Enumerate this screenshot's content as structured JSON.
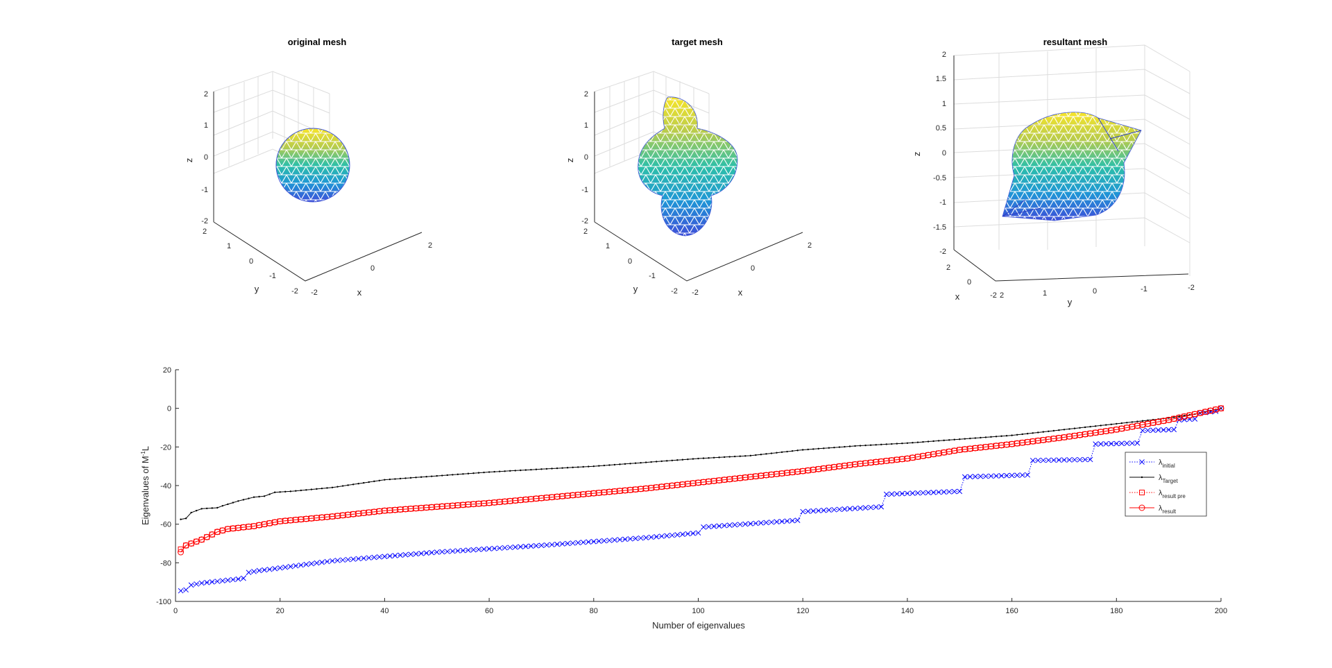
{
  "meshes": [
    {
      "title": "original mesh",
      "xlabel": "x",
      "ylabel": "y",
      "zlabel": "z",
      "x_ticks": [
        "2",
        "0",
        "-2"
      ],
      "y_ticks": [
        "2",
        "1",
        "0",
        "-1",
        "-2"
      ],
      "z_ticks": [
        "2",
        "1",
        "0",
        "-1",
        "-2"
      ]
    },
    {
      "title": "target mesh",
      "xlabel": "x",
      "ylabel": "y",
      "zlabel": "z",
      "x_ticks": [
        "2",
        "0",
        "-2"
      ],
      "y_ticks": [
        "2",
        "1",
        "0",
        "-1",
        "-2"
      ],
      "z_ticks": [
        "2",
        "1",
        "0",
        "-1",
        "-2"
      ]
    },
    {
      "title": "resultant mesh",
      "xlabel": "x",
      "ylabel": "y",
      "zlabel": "z",
      "x_ticks": [
        "2",
        "0",
        "-2"
      ],
      "y_ticks": [
        "2",
        "1",
        "0",
        "-1",
        "-2"
      ],
      "z_ticks": [
        "2",
        "1.5",
        "1",
        "0.5",
        "0",
        "-0.5",
        "-1",
        "-1.5",
        "-2"
      ]
    }
  ],
  "chart_data": {
    "type": "line",
    "xlabel": "Number of eigenvalues",
    "ylabel_main": "Eigenvalues of M",
    "ylabel_sup": "-1",
    "ylabel_tail": "L",
    "xlim": [
      0,
      200
    ],
    "ylim": [
      -100,
      20
    ],
    "x_ticks": [
      0,
      20,
      40,
      60,
      80,
      100,
      120,
      140,
      160,
      180,
      200
    ],
    "y_ticks": [
      -100,
      -80,
      -60,
      -40,
      -20,
      0,
      20
    ],
    "grid": false,
    "legend_position": "right",
    "series": [
      {
        "name_base": "λ",
        "name_sub": "initial",
        "color": "#0000ff",
        "line": "dotted",
        "marker": "x",
        "points": [
          [
            1,
            -94.5
          ],
          [
            2,
            -94
          ],
          [
            3,
            -91.5
          ],
          [
            4,
            -91
          ],
          [
            5,
            -90.5
          ],
          [
            6,
            -90.2
          ],
          [
            7,
            -89.9
          ],
          [
            8,
            -89.6
          ],
          [
            9,
            -89.3
          ],
          [
            10,
            -89
          ],
          [
            11,
            -88.7
          ],
          [
            12,
            -88.4
          ],
          [
            13,
            -88
          ],
          [
            14,
            -85
          ],
          [
            15,
            -84.5
          ],
          [
            16,
            -84
          ],
          [
            17,
            -83.7
          ],
          [
            18,
            -83.4
          ],
          [
            30,
            -79
          ],
          [
            50,
            -74.5
          ],
          [
            70,
            -71
          ],
          [
            90,
            -67
          ],
          [
            100,
            -64.5
          ],
          [
            101,
            -61.5
          ],
          [
            119,
            -58
          ],
          [
            120,
            -53.5
          ],
          [
            135,
            -51
          ],
          [
            136,
            -44.5
          ],
          [
            150,
            -43
          ],
          [
            151,
            -35.5
          ],
          [
            163,
            -34.5
          ],
          [
            164,
            -27
          ],
          [
            175,
            -26.5
          ],
          [
            176,
            -18.5
          ],
          [
            184,
            -18
          ],
          [
            185,
            -11.5
          ],
          [
            191,
            -11
          ],
          [
            192,
            -6
          ],
          [
            195,
            -5.5
          ],
          [
            196,
            -2.5
          ],
          [
            199,
            -1.5
          ],
          [
            200,
            0
          ]
        ]
      },
      {
        "name_base": "λ",
        "name_sub": "Target",
        "color": "#000000",
        "line": "solid",
        "marker": "dot",
        "points": [
          [
            1,
            -57.5
          ],
          [
            2,
            -57
          ],
          [
            3,
            -54
          ],
          [
            4,
            -53
          ],
          [
            5,
            -52
          ],
          [
            8,
            -51.5
          ],
          [
            9,
            -50.5
          ],
          [
            12,
            -48
          ],
          [
            15,
            -46
          ],
          [
            17,
            -45.5
          ],
          [
            19,
            -43.5
          ],
          [
            22,
            -43
          ],
          [
            30,
            -41
          ],
          [
            40,
            -37
          ],
          [
            50,
            -35
          ],
          [
            60,
            -33
          ],
          [
            80,
            -30
          ],
          [
            100,
            -26
          ],
          [
            110,
            -24.5
          ],
          [
            120,
            -21.5
          ],
          [
            130,
            -19.5
          ],
          [
            140,
            -18
          ],
          [
            150,
            -16
          ],
          [
            160,
            -14
          ],
          [
            170,
            -11
          ],
          [
            180,
            -8
          ],
          [
            190,
            -5
          ],
          [
            195,
            -3
          ],
          [
            200,
            0
          ]
        ]
      },
      {
        "name_base": "λ",
        "name_sub": "result pre",
        "color": "#ff0000",
        "line": "dotted",
        "marker": "square",
        "points": [
          [
            1,
            -73
          ],
          [
            2,
            -71
          ],
          [
            3,
            -70
          ],
          [
            5,
            -68
          ],
          [
            8,
            -64
          ],
          [
            10,
            -62.5
          ],
          [
            15,
            -61
          ],
          [
            20,
            -58.5
          ],
          [
            30,
            -56
          ],
          [
            40,
            -53
          ],
          [
            50,
            -51
          ],
          [
            60,
            -49
          ],
          [
            70,
            -46.5
          ],
          [
            80,
            -44
          ],
          [
            90,
            -41.5
          ],
          [
            100,
            -38.5
          ],
          [
            110,
            -35.5
          ],
          [
            120,
            -32.5
          ],
          [
            130,
            -29
          ],
          [
            140,
            -26
          ],
          [
            150,
            -21.5
          ],
          [
            160,
            -18.5
          ],
          [
            170,
            -15
          ],
          [
            180,
            -11
          ],
          [
            190,
            -6
          ],
          [
            195,
            -3
          ],
          [
            200,
            0
          ]
        ]
      },
      {
        "name_base": "λ",
        "name_sub": "result",
        "color": "#ff0000",
        "line": "solid",
        "marker": "circle",
        "points": [
          [
            1,
            -74.5
          ],
          [
            2,
            -71
          ],
          [
            3,
            -70
          ],
          [
            5,
            -68
          ],
          [
            8,
            -64
          ],
          [
            10,
            -62.5
          ],
          [
            15,
            -61
          ],
          [
            20,
            -58.5
          ],
          [
            30,
            -56
          ],
          [
            40,
            -53
          ],
          [
            50,
            -51
          ],
          [
            60,
            -49
          ],
          [
            70,
            -46.5
          ],
          [
            80,
            -44
          ],
          [
            90,
            -41.5
          ],
          [
            100,
            -38.5
          ],
          [
            110,
            -35.5
          ],
          [
            120,
            -32.5
          ],
          [
            130,
            -29
          ],
          [
            140,
            -26
          ],
          [
            150,
            -21.5
          ],
          [
            160,
            -18.5
          ],
          [
            170,
            -15
          ],
          [
            180,
            -11
          ],
          [
            190,
            -6
          ],
          [
            195,
            -3
          ],
          [
            200,
            0
          ]
        ]
      }
    ]
  }
}
